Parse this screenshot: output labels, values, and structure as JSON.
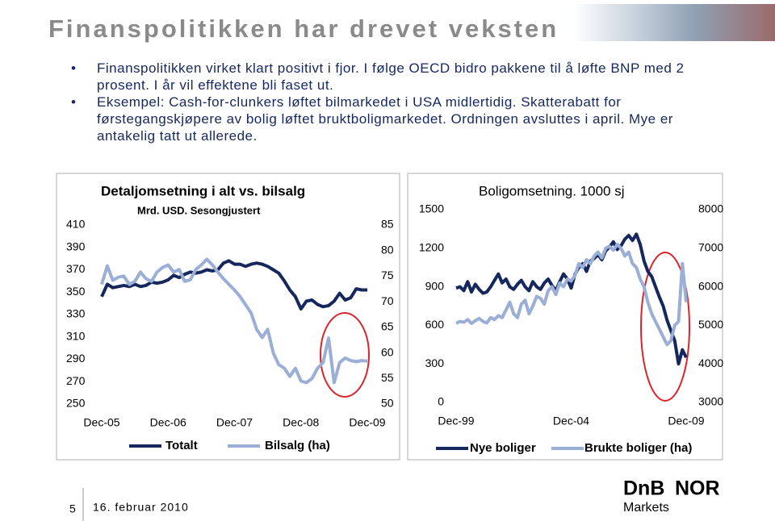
{
  "header": {
    "title": "Finanspolitikken har drevet veksten"
  },
  "bullets": [
    "Finanspolitikken virket klart positivt i fjor. I følge OECD bidro pakkene til å løfte BNP med 2 prosent. I år vil effektene bli faset ut.",
    "Eksempel: Cash-for-clunkers løftet bilmarkedet i USA midlertidig. Skatterabatt for førstegangskjøpere av bolig løftet bruktboligmarkedet. Ordningen avsluttes i april. Mye er antakelig tatt ut allerede."
  ],
  "chart_data": [
    {
      "type": "line",
      "title": "Detaljomsetning i alt vs. bilsalg",
      "subtitle": "Mrd. USD. Sesongjustert",
      "categories": [
        "Dec-05",
        null,
        null,
        null,
        null,
        null,
        null,
        null,
        null,
        null,
        null,
        null,
        "Dec-06",
        null,
        null,
        null,
        null,
        null,
        null,
        null,
        null,
        null,
        null,
        null,
        "Dec-07",
        null,
        null,
        null,
        null,
        null,
        null,
        null,
        null,
        null,
        null,
        null,
        "Dec-08",
        null,
        null,
        null,
        null,
        null,
        null,
        null,
        null,
        null,
        null,
        null,
        "Dec-09"
      ],
      "ylim": [
        250,
        410
      ],
      "yticks": [
        250,
        270,
        290,
        310,
        330,
        350,
        370,
        390,
        410
      ],
      "y2lim": [
        50,
        85
      ],
      "y2ticks": [
        50,
        55,
        60,
        65,
        70,
        75,
        80,
        85
      ],
      "series": [
        {
          "name": "Totalt",
          "color": "#16275e",
          "values": [
            346,
            357,
            354,
            355,
            356,
            355,
            357,
            355,
            356,
            359,
            358,
            359,
            361,
            365,
            363,
            366,
            368,
            367,
            368,
            370,
            369,
            370,
            376,
            378,
            375,
            375,
            373,
            375,
            376,
            375,
            373,
            370,
            367,
            360,
            352,
            346,
            335,
            342,
            343,
            339,
            337,
            338,
            342,
            349,
            343,
            345,
            353,
            352,
            352
          ]
        },
        {
          "name": "Bilsalg (ha)",
          "color": "#9aaed6",
          "axis": "y2",
          "values": [
            73.4,
            77,
            74.2,
            74.8,
            75,
            73.4,
            74,
            75.8,
            74.5,
            74,
            75.8,
            76.7,
            77.2,
            75.8,
            76.3,
            74,
            74.3,
            76.3,
            77.2,
            78.3,
            77.2,
            75.8,
            74.5,
            73.4,
            72.3,
            71,
            69.4,
            67.8,
            64.6,
            63,
            64.6,
            60,
            57.7,
            57,
            55.4,
            57,
            54.5,
            54.2,
            55,
            57,
            58.1,
            62.9,
            54.2,
            58.1,
            59,
            58.5,
            58.3,
            58.5,
            58.4
          ]
        }
      ]
    },
    {
      "type": "line",
      "title": "Boligomsetning. 1000 sj",
      "categories": [
        "Dec-99",
        null,
        null,
        null,
        null,
        null,
        null,
        null,
        null,
        null,
        null,
        null,
        null,
        null,
        null,
        null,
        null,
        null,
        null,
        null,
        null,
        null,
        null,
        null,
        null,
        null,
        null,
        null,
        null,
        null,
        "Dec-04",
        null,
        null,
        null,
        null,
        null,
        null,
        null,
        null,
        null,
        null,
        null,
        null,
        null,
        null,
        null,
        null,
        null,
        null,
        null,
        null,
        null,
        null,
        null,
        null,
        null,
        null,
        null,
        null,
        null,
        "Dec-09"
      ],
      "ylim": [
        0,
        1500
      ],
      "yticks": [
        0,
        300,
        600,
        900,
        1200,
        1500
      ],
      "y2lim": [
        3000,
        8000
      ],
      "y2ticks": [
        3000,
        4000,
        5000,
        6000,
        7000,
        8000
      ],
      "series": [
        {
          "name": "Nye boliger",
          "color": "#16275e",
          "values": [
            890,
            900,
            870,
            940,
            860,
            920,
            880,
            850,
            860,
            900,
            950,
            1000,
            930,
            960,
            900,
            880,
            920,
            950,
            900,
            870,
            940,
            900,
            880,
            930,
            960,
            910,
            870,
            940,
            1000,
            960,
            890,
            1000,
            1050,
            1080,
            1020,
            1100,
            1120,
            1150,
            1110,
            1180,
            1210,
            1250,
            1190,
            1220,
            1270,
            1300,
            1260,
            1310,
            1230,
            1100,
            1020,
            980,
            900,
            820,
            750,
            640,
            560,
            480,
            300,
            410,
            350
          ]
        },
        {
          "name": "Brukte boliger (ha)",
          "color": "#9aaed6",
          "axis": "y2",
          "values": [
            5050,
            5100,
            5080,
            5150,
            5050,
            5120,
            5180,
            5100,
            5060,
            5200,
            5150,
            5250,
            5200,
            5400,
            5600,
            5300,
            5200,
            5550,
            5650,
            5300,
            5500,
            5750,
            5700,
            5550,
            5900,
            6000,
            5800,
            6100,
            6000,
            6200,
            6150,
            6300,
            6600,
            6500,
            6700,
            6600,
            6800,
            6900,
            6750,
            7000,
            7050,
            6950,
            7100,
            7000,
            6800,
            6900,
            6600,
            6500,
            6200,
            6000,
            5600,
            5300,
            5100,
            4900,
            4700,
            4500,
            4600,
            5000,
            5100,
            6600,
            5600
          ]
        }
      ]
    }
  ],
  "footer": {
    "page": "5",
    "date": "16. februar 2010",
    "logo_left": "DnB",
    "logo_right": "NOR",
    "logo_sub": "Markets"
  }
}
